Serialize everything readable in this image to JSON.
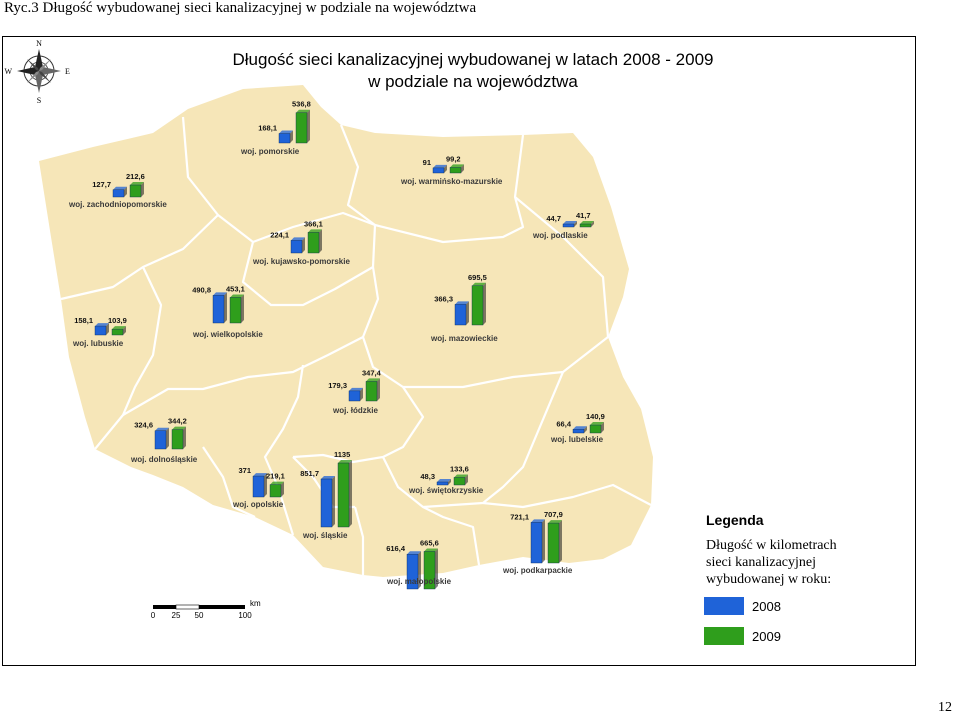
{
  "caption": "Ryc.3 Długość wybudowanej sieci kanalizacyjnej w podziale na województwa",
  "page_number": "12",
  "map": {
    "title_line1": "Długość sieci kanalizacyjnej wybudowanej w latach 2008 - 2009",
    "title_line2": "w podziale na województwa",
    "compass": {
      "n": "N",
      "s": "S",
      "e": "E",
      "w": "W"
    },
    "scale": {
      "unit": "km",
      "ticks": [
        "0",
        "25",
        "50",
        "100"
      ]
    },
    "legend": {
      "title": "Legenda",
      "desc_line1": "Długość w  kilometrach",
      "desc_line2": "sieci kanalizacyjnej",
      "desc_line3": "wybudowanej w roku:",
      "items": [
        {
          "label": "2008",
          "color": "#1f63d8"
        },
        {
          "label": "2009",
          "color": "#2f9e1c"
        }
      ]
    },
    "colors": {
      "land": "#f6e6b8",
      "border": "#ffffff",
      "bar_2008": "#1f63d8",
      "bar_2009": "#2f9e1c"
    }
  },
  "chart_data": {
    "type": "bar",
    "units": "km",
    "series_names": [
      "2008",
      "2009"
    ],
    "regions": [
      {
        "name": "woj. pomorskie",
        "v2008_label": "168,1",
        "v2009_label": "536,8",
        "v2008": 168.1,
        "v2009": 536.8
      },
      {
        "name": "woj. warmińsko-mazurskie",
        "v2008_label": "91",
        "v2009_label": "99,2",
        "v2008": 91,
        "v2009": 99.2
      },
      {
        "name": "woj. zachodniopomorskie",
        "v2008_label": "127,7",
        "v2009_label": "212,6",
        "v2008": 127.7,
        "v2009": 212.6
      },
      {
        "name": "woj. kujawsko-pomorskie",
        "v2008_label": "224,1",
        "v2009_label": "366,1",
        "v2008": 224.1,
        "v2009": 366.1
      },
      {
        "name": "woj. podlaskie",
        "v2008_label": "44,7",
        "v2009_label": "41,7",
        "v2008": 44.7,
        "v2009": 41.7
      },
      {
        "name": "woj. lubuskie",
        "v2008_label": "158,1",
        "v2009_label": "103,9",
        "v2008": 158.1,
        "v2009": 103.9
      },
      {
        "name": "woj. wielkopolskie",
        "v2008_label": "490,8",
        "v2009_label": "453,1",
        "v2008": 490.8,
        "v2009": 453.1
      },
      {
        "name": "woj. mazowieckie",
        "v2008_label": "366,3",
        "v2009_label": "695,5",
        "v2008": 366.3,
        "v2009": 695.5
      },
      {
        "name": "woj. łódzkie",
        "v2008_label": "179,3",
        "v2009_label": "347,4",
        "v2008": 179.3,
        "v2009": 347.4
      },
      {
        "name": "woj. dolnośląskie",
        "v2008_label": "324,6",
        "v2009_label": "344,2",
        "v2008": 324.6,
        "v2009": 344.2
      },
      {
        "name": "woj. lubelskie",
        "v2008_label": "66,4",
        "v2009_label": "140,9",
        "v2008": 66.4,
        "v2009": 140.9
      },
      {
        "name": "woj. opolskie",
        "v2008_label": "371",
        "v2009_label": "219,1",
        "v2008": 371,
        "v2009": 219.1
      },
      {
        "name": "woj. śląskie",
        "v2008_label": "851,7",
        "v2009_label": "1135",
        "v2008": 851.7,
        "v2009": 1135
      },
      {
        "name": "woj. świętokrzyskie",
        "v2008_label": "48,3",
        "v2009_label": "133,6",
        "v2008": 48.3,
        "v2009": 133.6
      },
      {
        "name": "woj. małopolskie",
        "v2008_label": "616,4",
        "v2009_label": "665,6",
        "v2008": 616.4,
        "v2009": 665.6
      },
      {
        "name": "woj. podkarpackie",
        "v2008_label": "721,1",
        "v2009_label": "707,9",
        "v2008": 721.1,
        "v2009": 707.9
      }
    ]
  }
}
